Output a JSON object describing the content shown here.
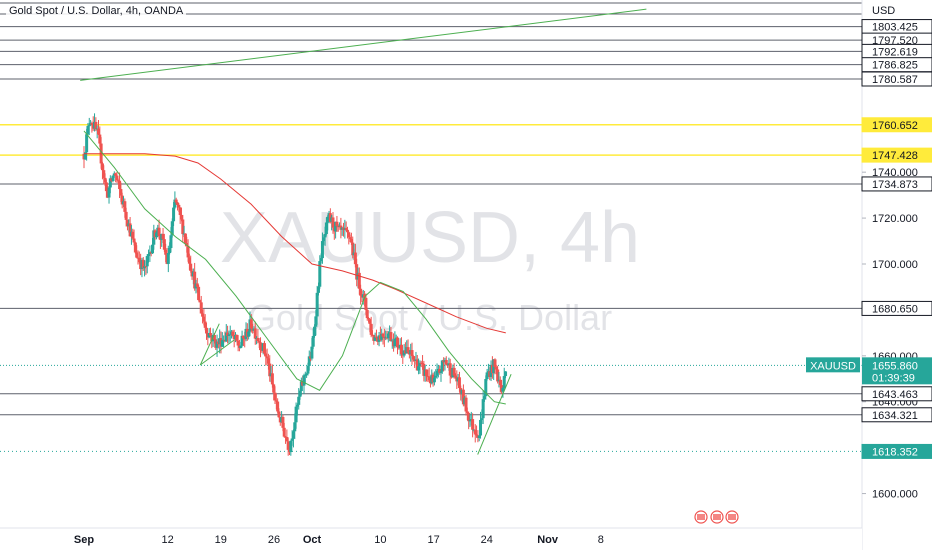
{
  "header": {
    "legend": "Gold Spot / U.S. Dollar, 4h, OANDA"
  },
  "watermark": {
    "main": "XAUUSD, 4h",
    "sub": "Gold Spot / U.S. Dollar"
  },
  "colors": {
    "up": "#26a69a",
    "down": "#ef5350",
    "ma_fast": "#4caf50",
    "ma_slow": "#e53935",
    "yellow_level": "#ffeb3b",
    "gray_level": "#5d606b",
    "price_badge": "#26a69a",
    "dotted_level": "#26a69a"
  },
  "chart_data": {
    "type": "candlestick",
    "title": "Gold Spot / U.S. Dollar, 4h, OANDA",
    "symbol": "XAUUSD",
    "currency": "USD",
    "timeframe": "4h",
    "yrange": [
      1585,
      1815
    ],
    "y_ticks": [
      1600.0,
      1620.0,
      1640.0,
      1660.0,
      1680.0,
      1700.0,
      1720.0,
      1740.0
    ],
    "x_ticks": [
      {
        "label": "Sep",
        "bold": true,
        "day_offset": 0
      },
      {
        "label": "12",
        "bold": false,
        "day_offset": 11
      },
      {
        "label": "19",
        "bold": false,
        "day_offset": 18
      },
      {
        "label": "26",
        "bold": false,
        "day_offset": 25
      },
      {
        "label": "Oct",
        "bold": true,
        "day_offset": 30
      },
      {
        "label": "10",
        "bold": false,
        "day_offset": 39
      },
      {
        "label": "17",
        "bold": false,
        "day_offset": 46
      },
      {
        "label": "24",
        "bold": false,
        "day_offset": 53
      },
      {
        "label": "Nov",
        "bold": true,
        "day_offset": 61
      },
      {
        "label": "8",
        "bold": false,
        "day_offset": 68
      }
    ],
    "horizontal_levels": [
      {
        "price": 1803.425,
        "label": "1803.425",
        "style": "gray"
      },
      {
        "price": 1797.52,
        "label": "1797.520",
        "style": "gray"
      },
      {
        "price": 1792.619,
        "label": "1792.619",
        "style": "gray"
      },
      {
        "price": 1786.825,
        "label": "1786.825",
        "style": "gray"
      },
      {
        "price": 1780.587,
        "label": "1780.587",
        "style": "gray"
      },
      {
        "price": 1760.652,
        "label": "1760.652",
        "style": "yellow"
      },
      {
        "price": 1747.428,
        "label": "1747.428",
        "style": "yellow"
      },
      {
        "price": 1734.873,
        "label": "1734.873",
        "style": "gray"
      },
      {
        "price": 1680.65,
        "label": "1680.650",
        "style": "gray"
      },
      {
        "price": 1643.463,
        "label": "1643.463",
        "style": "gray"
      },
      {
        "price": 1634.321,
        "label": "1634.321",
        "style": "gray"
      },
      {
        "price": 1618.352,
        "label": "1618.352",
        "style": "dotted"
      }
    ],
    "current_price": {
      "symbol": "XAUUSD",
      "price": 1655.86,
      "label": "1655.860",
      "countdown": "01:39:39"
    },
    "key_points": [
      {
        "day": 0.0,
        "price": 1748
      },
      {
        "day": 0.8,
        "price": 1764
      },
      {
        "day": 1.8,
        "price": 1756
      },
      {
        "day": 3.0,
        "price": 1730
      },
      {
        "day": 4.0,
        "price": 1740
      },
      {
        "day": 5.5,
        "price": 1722
      },
      {
        "day": 6.8,
        "price": 1705
      },
      {
        "day": 8.0,
        "price": 1697
      },
      {
        "day": 9.5,
        "price": 1716
      },
      {
        "day": 10.3,
        "price": 1710
      },
      {
        "day": 11.0,
        "price": 1700
      },
      {
        "day": 12.0,
        "price": 1728
      },
      {
        "day": 13.0,
        "price": 1716
      },
      {
        "day": 14.0,
        "price": 1700
      },
      {
        "day": 15.0,
        "price": 1686
      },
      {
        "day": 16.0,
        "price": 1672
      },
      {
        "day": 17.5,
        "price": 1665
      },
      {
        "day": 19.0,
        "price": 1670
      },
      {
        "day": 20.5,
        "price": 1664
      },
      {
        "day": 22.0,
        "price": 1674
      },
      {
        "day": 24.0,
        "price": 1660
      },
      {
        "day": 25.3,
        "price": 1638
      },
      {
        "day": 27.0,
        "price": 1620
      },
      {
        "day": 28.5,
        "price": 1645
      },
      {
        "day": 30.0,
        "price": 1662
      },
      {
        "day": 31.2,
        "price": 1705
      },
      {
        "day": 32.2,
        "price": 1720
      },
      {
        "day": 33.5,
        "price": 1714
      },
      {
        "day": 35.0,
        "price": 1712
      },
      {
        "day": 36.0,
        "price": 1694
      },
      {
        "day": 37.0,
        "price": 1682
      },
      {
        "day": 38.0,
        "price": 1668
      },
      {
        "day": 40.0,
        "price": 1670
      },
      {
        "day": 41.5,
        "price": 1664
      },
      {
        "day": 43.0,
        "price": 1660
      },
      {
        "day": 44.5,
        "price": 1654
      },
      {
        "day": 46.0,
        "price": 1648
      },
      {
        "day": 47.5,
        "price": 1658
      },
      {
        "day": 49.0,
        "price": 1650
      },
      {
        "day": 51.0,
        "price": 1630
      },
      {
        "day": 52.0,
        "price": 1626
      },
      {
        "day": 53.0,
        "price": 1652
      },
      {
        "day": 54.0,
        "price": 1656
      },
      {
        "day": 55.0,
        "price": 1644
      },
      {
        "day": 55.6,
        "price": 1656
      }
    ],
    "ma_fast": [
      {
        "day": 0,
        "price": 1758
      },
      {
        "day": 4,
        "price": 1742
      },
      {
        "day": 8,
        "price": 1724
      },
      {
        "day": 12,
        "price": 1712
      },
      {
        "day": 16,
        "price": 1702
      },
      {
        "day": 20,
        "price": 1686
      },
      {
        "day": 24,
        "price": 1668
      },
      {
        "day": 28,
        "price": 1650
      },
      {
        "day": 31,
        "price": 1645
      },
      {
        "day": 34,
        "price": 1660
      },
      {
        "day": 37,
        "price": 1686
      },
      {
        "day": 39,
        "price": 1692
      },
      {
        "day": 42,
        "price": 1688
      },
      {
        "day": 45,
        "price": 1676
      },
      {
        "day": 48,
        "price": 1662
      },
      {
        "day": 51,
        "price": 1650
      },
      {
        "day": 54,
        "price": 1640
      },
      {
        "day": 55.5,
        "price": 1639
      }
    ],
    "ma_slow": [
      {
        "day": 0,
        "price": 1748
      },
      {
        "day": 4,
        "price": 1748
      },
      {
        "day": 8,
        "price": 1748
      },
      {
        "day": 12,
        "price": 1747
      },
      {
        "day": 15,
        "price": 1744
      },
      {
        "day": 18,
        "price": 1737
      },
      {
        "day": 22,
        "price": 1726
      },
      {
        "day": 26,
        "price": 1712
      },
      {
        "day": 30,
        "price": 1700
      },
      {
        "day": 34,
        "price": 1697
      },
      {
        "day": 38,
        "price": 1693
      },
      {
        "day": 41,
        "price": 1689
      },
      {
        "day": 45,
        "price": 1683
      },
      {
        "day": 49,
        "price": 1677
      },
      {
        "day": 53,
        "price": 1672
      },
      {
        "day": 55.5,
        "price": 1670
      }
    ],
    "trendlines": [
      {
        "points": [
          {
            "day": -0.5,
            "price": 1780
          },
          {
            "day": 74,
            "price": 1811
          }
        ]
      },
      {
        "points": [
          {
            "day": 15.3,
            "price": 1656
          },
          {
            "day": 17.8,
            "price": 1674
          }
        ]
      },
      {
        "points": [
          {
            "day": 15.3,
            "price": 1656
          },
          {
            "day": 19.8,
            "price": 1667
          }
        ]
      },
      {
        "points": [
          {
            "day": 51.8,
            "price": 1617
          },
          {
            "day": 56.2,
            "price": 1652
          }
        ]
      }
    ]
  }
}
